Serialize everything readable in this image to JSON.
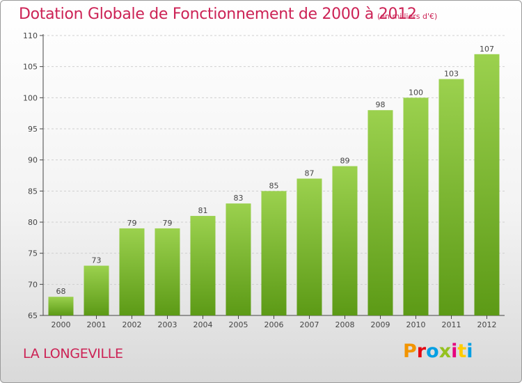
{
  "header": {
    "title": "Dotation Globale de Fonctionnement de 2000 à 2012",
    "subtitle": "(en milliers d'€)"
  },
  "footer": {
    "commune": "LA LONGEVILLE",
    "logo_text": "Proxiti",
    "logo_colors": [
      "#f29400",
      "#e30613",
      "#009fe3",
      "#95c11f",
      "#e6007e",
      "#ffcc00",
      "#009fe3"
    ]
  },
  "colors": {
    "bar_light": "#9bd14e",
    "bar_dark": "#5c9a16",
    "text_accent": "#cc2255"
  },
  "chart_data": {
    "type": "bar",
    "categories": [
      "2000",
      "2001",
      "2002",
      "2003",
      "2004",
      "2005",
      "2006",
      "2007",
      "2008",
      "2009",
      "2010",
      "2011",
      "2012"
    ],
    "values": [
      68,
      73,
      79,
      79,
      81,
      83,
      85,
      87,
      89,
      98,
      100,
      103,
      107
    ],
    "ylim": [
      65,
      110
    ],
    "yticks": [
      "65",
      "70",
      "75",
      "80",
      "85",
      "90",
      "95",
      "100",
      "105",
      "110"
    ],
    "grid": true,
    "legend": "none"
  }
}
